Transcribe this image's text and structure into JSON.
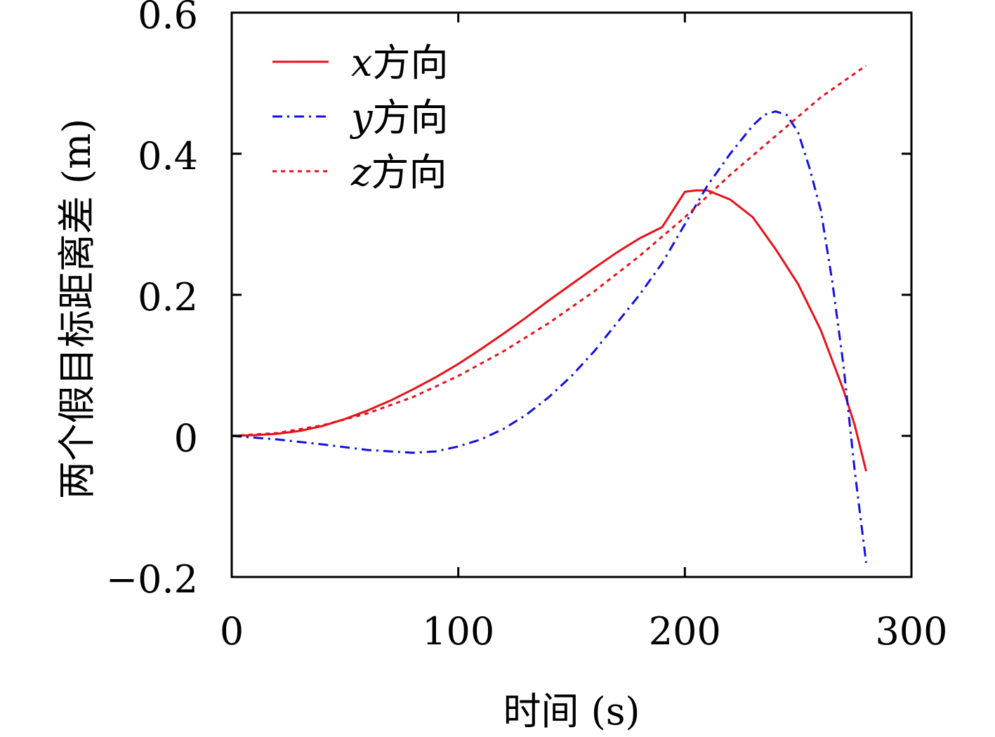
{
  "chart_data": {
    "type": "line",
    "title": "",
    "xlabel": "时间 (s)",
    "ylabel": "两个假目标距离差 (m)",
    "xlim": [
      0,
      300
    ],
    "ylim": [
      -0.2,
      0.6
    ],
    "xticks": [
      0,
      100,
      200,
      300
    ],
    "yticks": [
      -0.2,
      0,
      0.2,
      0.4,
      0.6
    ],
    "xtick_labels": [
      "0",
      "100",
      "200",
      "300"
    ],
    "ytick_labels": [
      "−0.2",
      "0",
      "0.2",
      "0.4",
      "0.6"
    ],
    "grid": false,
    "legend_position": "top-left",
    "series": [
      {
        "name": "x方向",
        "name_var": "x",
        "name_suffix": "方向",
        "color": "#e8101a",
        "dash": "solid",
        "x": [
          0,
          10,
          20,
          30,
          40,
          50,
          60,
          70,
          80,
          90,
          100,
          110,
          120,
          130,
          140,
          150,
          160,
          170,
          180,
          190,
          200,
          205,
          210,
          220,
          230,
          240,
          250,
          260,
          270,
          275,
          280
        ],
        "y": [
          0,
          0.001,
          0.003,
          0.007,
          0.014,
          0.024,
          0.036,
          0.05,
          0.066,
          0.083,
          0.102,
          0.123,
          0.145,
          0.168,
          0.192,
          0.215,
          0.238,
          0.26,
          0.28,
          0.296,
          0.346,
          0.348,
          0.348,
          0.335,
          0.31,
          0.265,
          0.215,
          0.15,
          0.065,
          0.015,
          -0.05
        ]
      },
      {
        "name": "y方向",
        "name_var": "y",
        "name_suffix": "方向",
        "color": "#1010e0",
        "dash": "dashdot",
        "x": [
          0,
          20,
          40,
          60,
          80,
          90,
          100,
          110,
          120,
          130,
          140,
          150,
          160,
          170,
          180,
          190,
          200,
          210,
          220,
          230,
          235,
          240,
          245,
          250,
          255,
          260,
          265,
          270,
          275,
          280
        ],
        "y": [
          0,
          -0.005,
          -0.012,
          -0.02,
          -0.024,
          -0.022,
          -0.015,
          -0.005,
          0.01,
          0.03,
          0.055,
          0.085,
          0.12,
          0.16,
          0.2,
          0.245,
          0.3,
          0.355,
          0.4,
          0.44,
          0.455,
          0.46,
          0.455,
          0.43,
          0.38,
          0.32,
          0.22,
          0.1,
          -0.05,
          -0.18
        ]
      },
      {
        "name": "z方向",
        "name_var": "z",
        "name_suffix": "方向",
        "color": "#e8101a",
        "dash": "dotted",
        "x": [
          0,
          20,
          40,
          60,
          80,
          100,
          120,
          140,
          160,
          180,
          200,
          220,
          240,
          260,
          280
        ],
        "y": [
          0,
          0.004,
          0.015,
          0.032,
          0.055,
          0.085,
          0.12,
          0.16,
          0.205,
          0.255,
          0.31,
          0.37,
          0.425,
          0.48,
          0.525
        ]
      }
    ]
  }
}
